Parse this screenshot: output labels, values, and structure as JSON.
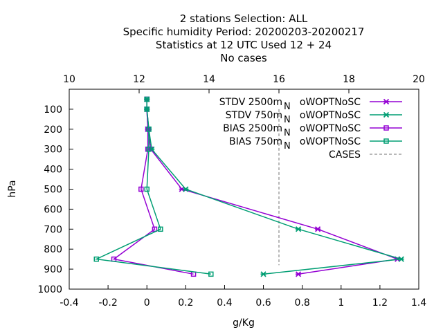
{
  "chart_data": {
    "type": "line",
    "title_lines": [
      "2 stations Selection: ALL",
      "Specific humidity  Period: 20200203-20200217",
      "Statistics at 12 UTC  Used  12 + 24",
      "No cases"
    ],
    "xlabel": "g/Kg",
    "ylabel": "hPa",
    "xlim": [
      -0.4,
      1.4
    ],
    "ylim": [
      1000,
      0
    ],
    "x_ticks": [
      "-0.4",
      "-0.2",
      "0",
      "0.2",
      "0.4",
      "0.6",
      "0.8",
      "1",
      "1.2",
      "1.4"
    ],
    "y_ticks": [
      "100",
      "200",
      "300",
      "400",
      "500",
      "600",
      "700",
      "800",
      "900",
      "1000"
    ],
    "x2lim": [
      10,
      20
    ],
    "x2_ticks": [
      "10",
      "12",
      "14",
      "16",
      "18",
      "20"
    ],
    "grid": false,
    "legend_position": "top-right",
    "legend_subscript": "N",
    "series": [
      {
        "name": "STDV 2500m",
        "legend_suffix": "oWOPTNoSC",
        "color": "#9400d3",
        "marker": "x",
        "points": [
          [
            0.0,
            50
          ],
          [
            0.0,
            100
          ],
          [
            0.005,
            200
          ],
          [
            0.02,
            300
          ],
          [
            0.18,
            500
          ],
          [
            0.88,
            700
          ],
          [
            1.29,
            850
          ],
          [
            0.78,
            925
          ]
        ]
      },
      {
        "name": "STDV 750m",
        "legend_suffix": "oWOPTNoSC",
        "color": "#009e73",
        "marker": "x",
        "points": [
          [
            0.0,
            50
          ],
          [
            0.0,
            100
          ],
          [
            0.01,
            200
          ],
          [
            0.025,
            300
          ],
          [
            0.2,
            500
          ],
          [
            0.78,
            700
          ],
          [
            1.31,
            850
          ],
          [
            0.6,
            925
          ]
        ]
      },
      {
        "name": "BIAS 2500m",
        "legend_suffix": "oWOPTNoSC",
        "color": "#9400d3",
        "marker": "square",
        "points": [
          [
            0.0,
            50
          ],
          [
            0.0,
            100
          ],
          [
            0.005,
            200
          ],
          [
            0.005,
            300
          ],
          [
            -0.03,
            500
          ],
          [
            0.04,
            700
          ],
          [
            -0.17,
            850
          ],
          [
            0.24,
            925
          ]
        ]
      },
      {
        "name": "BIAS 750m",
        "legend_suffix": "oWOPTNoSC",
        "color": "#009e73",
        "marker": "square",
        "points": [
          [
            0.0,
            50
          ],
          [
            0.0,
            100
          ],
          [
            0.01,
            200
          ],
          [
            0.01,
            300
          ],
          [
            0.0,
            500
          ],
          [
            0.07,
            700
          ],
          [
            -0.26,
            850
          ],
          [
            0.33,
            925
          ]
        ]
      }
    ],
    "cases": {
      "name": "CASES",
      "color": "#a0a0a0",
      "x2_value": 16.0,
      "y_from": 100,
      "y_to": 880
    }
  }
}
